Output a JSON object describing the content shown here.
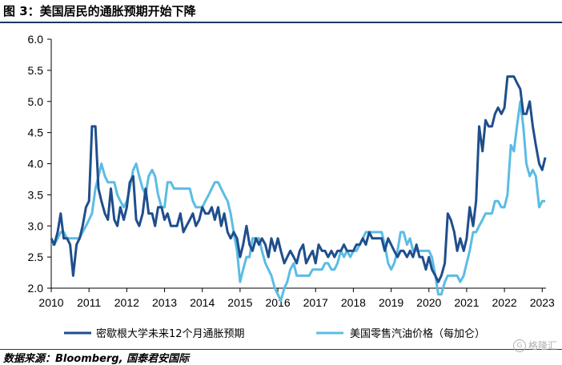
{
  "title": "图 3：美国居民的通胀预期开始下降",
  "source": "数据来源：Bloomberg, 国泰君安国际",
  "watermark": "格隆汇",
  "chart_data": {
    "type": "line",
    "title": "图 3：美国居民的通胀预期开始下降",
    "xlabel": "",
    "ylabel": "",
    "xlim": [
      2010,
      2023.1
    ],
    "ylim": [
      2.0,
      6.0
    ],
    "x_ticks": [
      "2010",
      "2011",
      "2012",
      "2013",
      "2014",
      "2015",
      "2016",
      "2017",
      "2018",
      "2019",
      "2020",
      "2021",
      "2022",
      "2023"
    ],
    "y_ticks": [
      "2.0",
      "2.5",
      "3.0",
      "3.5",
      "4.0",
      "4.5",
      "5.0",
      "5.5",
      "6.0"
    ],
    "grid": false,
    "legend_position": "bottom",
    "colors": {
      "series1": "#1f4e8c",
      "series2": "#5bbce4"
    },
    "series": [
      {
        "name": "密歇根大学未来12个月通胀预期",
        "color": "#1f4e8c",
        "x": [
          2010.0,
          2010.08,
          2010.17,
          2010.25,
          2010.33,
          2010.42,
          2010.5,
          2010.58,
          2010.67,
          2010.75,
          2010.83,
          2010.92,
          2011.0,
          2011.08,
          2011.17,
          2011.25,
          2011.33,
          2011.42,
          2011.5,
          2011.58,
          2011.67,
          2011.75,
          2011.83,
          2011.92,
          2012.0,
          2012.08,
          2012.17,
          2012.25,
          2012.33,
          2012.42,
          2012.5,
          2012.58,
          2012.67,
          2012.75,
          2012.83,
          2012.92,
          2013.0,
          2013.08,
          2013.17,
          2013.25,
          2013.33,
          2013.42,
          2013.5,
          2013.58,
          2013.67,
          2013.75,
          2013.83,
          2013.92,
          2014.0,
          2014.08,
          2014.17,
          2014.25,
          2014.33,
          2014.42,
          2014.5,
          2014.58,
          2014.67,
          2014.75,
          2014.83,
          2014.92,
          2015.0,
          2015.08,
          2015.17,
          2015.25,
          2015.33,
          2015.42,
          2015.5,
          2015.58,
          2015.67,
          2015.75,
          2015.83,
          2015.92,
          2016.0,
          2016.08,
          2016.17,
          2016.25,
          2016.33,
          2016.42,
          2016.5,
          2016.58,
          2016.67,
          2016.75,
          2016.83,
          2016.92,
          2017.0,
          2017.08,
          2017.17,
          2017.25,
          2017.33,
          2017.42,
          2017.5,
          2017.58,
          2017.67,
          2017.75,
          2017.83,
          2017.92,
          2018.0,
          2018.08,
          2018.17,
          2018.25,
          2018.33,
          2018.42,
          2018.5,
          2018.58,
          2018.67,
          2018.75,
          2018.83,
          2018.92,
          2019.0,
          2019.08,
          2019.17,
          2019.25,
          2019.33,
          2019.42,
          2019.5,
          2019.58,
          2019.67,
          2019.75,
          2019.83,
          2019.92,
          2020.0,
          2020.08,
          2020.17,
          2020.25,
          2020.33,
          2020.42,
          2020.5,
          2020.58,
          2020.67,
          2020.75,
          2020.83,
          2020.92,
          2021.0,
          2021.08,
          2021.17,
          2021.25,
          2021.33,
          2021.42,
          2021.5,
          2021.58,
          2021.67,
          2021.75,
          2021.83,
          2021.92,
          2022.0,
          2022.08,
          2022.17,
          2022.25,
          2022.33,
          2022.42,
          2022.5,
          2022.58,
          2022.67,
          2022.75,
          2022.83,
          2022.92,
          2023.0,
          2023.08
        ],
        "values": [
          2.8,
          2.7,
          2.9,
          3.2,
          2.8,
          2.8,
          2.7,
          2.2,
          2.7,
          2.8,
          3.0,
          3.3,
          3.4,
          4.6,
          4.6,
          3.6,
          3.4,
          3.2,
          3.1,
          3.6,
          3.1,
          3.0,
          3.3,
          3.1,
          3.3,
          3.7,
          3.8,
          3.1,
          3.0,
          3.2,
          3.6,
          3.2,
          3.2,
          3.0,
          3.3,
          3.3,
          3.1,
          3.2,
          3.0,
          3.0,
          3.0,
          3.2,
          2.9,
          3.0,
          3.1,
          3.2,
          3.0,
          3.1,
          3.3,
          3.2,
          3.2,
          3.3,
          3.1,
          3.3,
          3.0,
          3.2,
          2.9,
          2.8,
          2.9,
          2.8,
          2.5,
          2.7,
          3.0,
          2.7,
          2.6,
          2.8,
          2.7,
          2.8,
          2.7,
          2.5,
          2.8,
          2.6,
          2.8,
          2.6,
          2.4,
          2.5,
          2.6,
          2.5,
          2.4,
          2.6,
          2.7,
          2.4,
          2.5,
          2.6,
          2.4,
          2.7,
          2.6,
          2.6,
          2.5,
          2.6,
          2.5,
          2.6,
          2.6,
          2.7,
          2.6,
          2.6,
          2.6,
          2.7,
          2.7,
          2.8,
          2.7,
          2.9,
          2.8,
          2.8,
          2.8,
          2.8,
          2.6,
          2.8,
          2.7,
          2.6,
          2.5,
          2.6,
          2.6,
          2.5,
          2.6,
          2.5,
          2.7,
          2.5,
          2.5,
          2.3,
          2.5,
          2.3,
          2.2,
          2.1,
          2.2,
          2.4,
          3.2,
          3.1,
          2.9,
          2.6,
          2.8,
          2.6,
          2.8,
          3.3,
          3.0,
          3.4,
          4.6,
          4.2,
          4.7,
          4.6,
          4.6,
          4.8,
          4.9,
          4.8,
          4.9,
          5.4,
          5.4,
          5.4,
          5.3,
          5.2,
          4.8,
          4.8,
          5.0,
          4.6,
          4.3,
          4.0,
          3.9,
          4.1
        ]
      },
      {
        "name": "美国零售汽油价格（每加仑）",
        "color": "#5bbce4",
        "x": [
          2010.0,
          2010.08,
          2010.17,
          2010.25,
          2010.33,
          2010.42,
          2010.5,
          2010.58,
          2010.67,
          2010.75,
          2010.83,
          2010.92,
          2011.0,
          2011.08,
          2011.17,
          2011.25,
          2011.33,
          2011.42,
          2011.5,
          2011.58,
          2011.67,
          2011.75,
          2011.83,
          2011.92,
          2012.0,
          2012.08,
          2012.17,
          2012.25,
          2012.33,
          2012.42,
          2012.5,
          2012.58,
          2012.67,
          2012.75,
          2012.83,
          2012.92,
          2013.0,
          2013.08,
          2013.17,
          2013.25,
          2013.33,
          2013.42,
          2013.5,
          2013.58,
          2013.67,
          2013.75,
          2013.83,
          2013.92,
          2014.0,
          2014.08,
          2014.17,
          2014.25,
          2014.33,
          2014.42,
          2014.5,
          2014.58,
          2014.67,
          2014.75,
          2014.83,
          2014.92,
          2015.0,
          2015.08,
          2015.17,
          2015.25,
          2015.33,
          2015.42,
          2015.5,
          2015.58,
          2015.67,
          2015.75,
          2015.83,
          2015.92,
          2016.0,
          2016.08,
          2016.17,
          2016.25,
          2016.33,
          2016.42,
          2016.5,
          2016.58,
          2016.67,
          2016.75,
          2016.83,
          2016.92,
          2017.0,
          2017.08,
          2017.17,
          2017.25,
          2017.33,
          2017.42,
          2017.5,
          2017.58,
          2017.67,
          2017.75,
          2017.83,
          2017.92,
          2018.0,
          2018.08,
          2018.17,
          2018.25,
          2018.33,
          2018.42,
          2018.5,
          2018.58,
          2018.67,
          2018.75,
          2018.83,
          2018.92,
          2019.0,
          2019.08,
          2019.17,
          2019.25,
          2019.33,
          2019.42,
          2019.5,
          2019.58,
          2019.67,
          2019.75,
          2019.83,
          2019.92,
          2020.0,
          2020.08,
          2020.17,
          2020.25,
          2020.33,
          2020.42,
          2020.5,
          2020.58,
          2020.67,
          2020.75,
          2020.83,
          2020.92,
          2021.0,
          2021.08,
          2021.17,
          2021.25,
          2021.33,
          2021.42,
          2021.5,
          2021.58,
          2021.67,
          2021.75,
          2021.83,
          2021.92,
          2022.0,
          2022.08,
          2022.17,
          2022.25,
          2022.33,
          2022.42,
          2022.5,
          2022.58,
          2022.67,
          2022.75,
          2022.83,
          2022.92,
          2023.0,
          2023.08
        ],
        "values": [
          2.7,
          2.7,
          2.8,
          2.9,
          2.9,
          2.8,
          2.8,
          2.8,
          2.8,
          2.8,
          2.9,
          3.0,
          3.1,
          3.2,
          3.6,
          3.8,
          4.0,
          3.8,
          3.7,
          3.7,
          3.7,
          3.5,
          3.4,
          3.3,
          3.4,
          3.6,
          3.9,
          4.0,
          3.8,
          3.6,
          3.5,
          3.8,
          3.9,
          3.8,
          3.5,
          3.3,
          3.3,
          3.7,
          3.7,
          3.6,
          3.6,
          3.6,
          3.6,
          3.6,
          3.6,
          3.4,
          3.3,
          3.3,
          3.3,
          3.4,
          3.5,
          3.6,
          3.7,
          3.7,
          3.6,
          3.5,
          3.4,
          3.2,
          2.9,
          2.6,
          2.1,
          2.3,
          2.5,
          2.5,
          2.8,
          2.8,
          2.8,
          2.6,
          2.4,
          2.3,
          2.2,
          2.0,
          1.9,
          1.8,
          2.0,
          2.1,
          2.3,
          2.4,
          2.2,
          2.2,
          2.2,
          2.2,
          2.2,
          2.3,
          2.3,
          2.3,
          2.3,
          2.4,
          2.4,
          2.3,
          2.3,
          2.4,
          2.6,
          2.5,
          2.6,
          2.5,
          2.6,
          2.6,
          2.7,
          2.8,
          2.9,
          2.9,
          2.9,
          2.9,
          2.9,
          2.9,
          2.7,
          2.4,
          2.3,
          2.4,
          2.6,
          2.9,
          2.9,
          2.7,
          2.8,
          2.6,
          2.6,
          2.6,
          2.6,
          2.6,
          2.6,
          2.5,
          2.2,
          1.9,
          1.9,
          2.1,
          2.2,
          2.2,
          2.2,
          2.2,
          2.1,
          2.2,
          2.4,
          2.6,
          2.9,
          2.9,
          3.0,
          3.1,
          3.2,
          3.2,
          3.2,
          3.4,
          3.4,
          3.3,
          3.3,
          3.5,
          4.3,
          4.2,
          4.6,
          5.0,
          4.6,
          4.0,
          3.8,
          3.9,
          3.8,
          3.3,
          3.4,
          3.4
        ]
      }
    ]
  }
}
